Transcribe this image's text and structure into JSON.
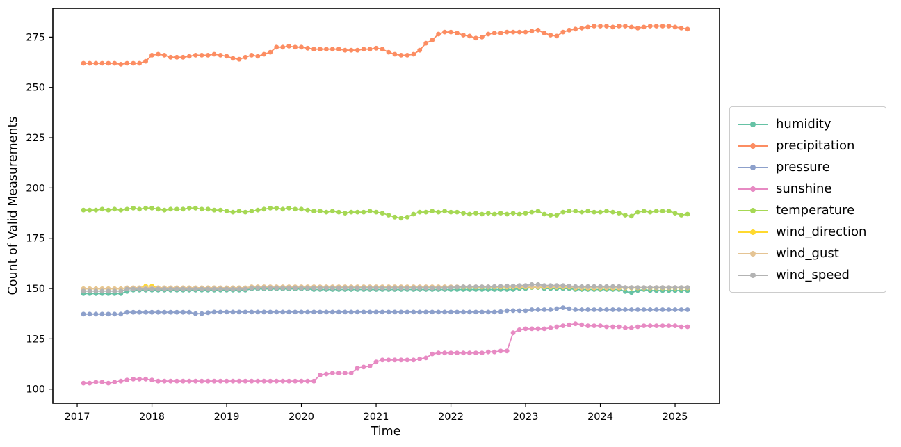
{
  "chart_data": {
    "type": "line",
    "title": "",
    "xlabel": "Time",
    "ylabel": "Count of Valid Measurements",
    "x_ticks": [
      2017,
      2018,
      2019,
      2020,
      2021,
      2022,
      2023,
      2024,
      2025
    ],
    "y_ticks": [
      100,
      125,
      150,
      175,
      200,
      225,
      250,
      275
    ],
    "xlim": [
      2016.674,
      2025.595
    ],
    "ylim": [
      93.0,
      289.3
    ],
    "grid": false,
    "legend_position": "center-right-outside",
    "marker": "circle",
    "x_frequency": "monthly",
    "x_start": {
      "year": 2017,
      "month": 2
    },
    "series": [
      {
        "name": "humidity",
        "color": "#66c2a5",
        "values": [
          147.5,
          147.5,
          147.5,
          147.5,
          147.5,
          147.5,
          147.5,
          148.5,
          149.2,
          149.2,
          149.2,
          149.2,
          149.2,
          149.2,
          149.2,
          149.2,
          149.2,
          149.2,
          149.2,
          149.2,
          149.2,
          149.2,
          149.2,
          149.2,
          149.2,
          149.2,
          149.2,
          149.8,
          149.8,
          149.8,
          149.8,
          149.8,
          149.8,
          149.8,
          149.8,
          149.8,
          149.8,
          149.5,
          149.5,
          149.5,
          149.5,
          149.5,
          149.5,
          149.5,
          149.5,
          149.5,
          149.5,
          149.5,
          149.5,
          149.5,
          149.5,
          149.5,
          149.5,
          149.5,
          149.5,
          149.5,
          149.5,
          149.5,
          149.5,
          149.5,
          149.5,
          149.5,
          149.5,
          149.5,
          149.5,
          149.5,
          149.5,
          149.5,
          149.5,
          149.5,
          150,
          150,
          150.5,
          150.5,
          150,
          150,
          150,
          150,
          150,
          149.5,
          149.5,
          149.5,
          149.5,
          149.5,
          149.5,
          149.5,
          149.5,
          148.5,
          148,
          149,
          149.5,
          149,
          149,
          149,
          149,
          149,
          149,
          149
        ]
      },
      {
        "name": "precipitation",
        "color": "#fc8d62",
        "values": [
          262,
          262,
          262,
          262,
          262,
          262,
          261.5,
          262,
          262,
          262,
          263,
          266,
          266.5,
          266,
          265,
          265,
          265,
          265.5,
          266,
          266,
          266,
          266.5,
          266,
          265.5,
          264.5,
          264,
          265,
          266,
          265.5,
          266.5,
          267.5,
          270,
          270,
          270.5,
          270,
          270,
          269.5,
          269,
          269,
          269,
          269,
          269,
          268.5,
          268.5,
          268.5,
          269,
          269,
          269.5,
          269,
          267.5,
          266.5,
          266,
          266,
          266.5,
          268.5,
          272,
          273.5,
          276.5,
          277.5,
          277.5,
          277,
          276,
          275.5,
          274.5,
          275,
          276.5,
          277,
          277,
          277.5,
          277.5,
          277.5,
          277.5,
          278,
          278.5,
          277,
          276,
          275.5,
          277.5,
          278.5,
          279,
          279.5,
          280,
          280.5,
          280.5,
          280.5,
          280,
          280.5,
          280.5,
          280,
          279.5,
          280,
          280.5,
          280.5,
          280.5,
          280.5,
          280,
          279.5,
          279
        ]
      },
      {
        "name": "pressure",
        "color": "#8da0cb",
        "values": [
          137.3,
          137.3,
          137.3,
          137.3,
          137.3,
          137.3,
          137.3,
          138.2,
          138.2,
          138.2,
          138.2,
          138.2,
          138.2,
          138.2,
          138.2,
          138.2,
          138.2,
          138.2,
          137.5,
          137.5,
          138,
          138.3,
          138.3,
          138.3,
          138.3,
          138.3,
          138.3,
          138.3,
          138.3,
          138.3,
          138.3,
          138.3,
          138.3,
          138.3,
          138.3,
          138.3,
          138.3,
          138.3,
          138.3,
          138.3,
          138.3,
          138.3,
          138.3,
          138.3,
          138.3,
          138.3,
          138.3,
          138.3,
          138.3,
          138.3,
          138.3,
          138.3,
          138.3,
          138.3,
          138.3,
          138.3,
          138.3,
          138.3,
          138.3,
          138.3,
          138.3,
          138.3,
          138.3,
          138.3,
          138.3,
          138.3,
          138.3,
          138.5,
          139,
          139,
          139,
          139,
          139.5,
          139.5,
          139.5,
          139.5,
          140,
          140.5,
          140,
          139.5,
          139.5,
          139.5,
          139.5,
          139.5,
          139.5,
          139.5,
          139.5,
          139.5,
          139.5,
          139.5,
          139.5,
          139.5,
          139.5,
          139.5,
          139.5,
          139.5,
          139.5,
          139.5
        ]
      },
      {
        "name": "sunshine",
        "color": "#e78ac3",
        "values": [
          103,
          103,
          103.5,
          103.5,
          103,
          103.5,
          104,
          104.5,
          105,
          105,
          105,
          104.5,
          104,
          104,
          104,
          104,
          104,
          104,
          104,
          104,
          104,
          104,
          104,
          104,
          104,
          104,
          104,
          104,
          104,
          104,
          104,
          104,
          104,
          104,
          104,
          104,
          104,
          104,
          107,
          107.5,
          108,
          108,
          108,
          108,
          110.5,
          111,
          111.5,
          113.5,
          114.5,
          114.5,
          114.5,
          114.5,
          114.5,
          114.5,
          115,
          115.5,
          117.5,
          118,
          118,
          118,
          118,
          118,
          118,
          118,
          118,
          118.5,
          118.5,
          119,
          119,
          128,
          129.5,
          130,
          130,
          130,
          130,
          130.5,
          131,
          131.5,
          132,
          132.5,
          132,
          131.5,
          131.5,
          131.5,
          131,
          131,
          131,
          130.5,
          130.5,
          131,
          131.5,
          131.5,
          131.5,
          131.5,
          131.5,
          131.5,
          131,
          131
        ]
      },
      {
        "name": "temperature",
        "color": "#a6d854",
        "values": [
          189,
          189,
          189,
          189.5,
          189,
          189.5,
          189,
          189.5,
          190,
          189.5,
          190,
          190,
          189.5,
          189,
          189.5,
          189.5,
          189.5,
          190,
          190,
          189.5,
          189.5,
          189,
          189,
          188.5,
          188,
          188.5,
          188,
          188.5,
          189,
          189.5,
          190,
          190,
          189.5,
          190,
          189.5,
          189.5,
          189,
          188.5,
          188.5,
          188,
          188.5,
          188,
          187.5,
          188,
          188,
          188,
          188.5,
          188,
          187.5,
          186.5,
          185.5,
          185,
          185.5,
          187,
          188,
          188,
          188.5,
          188,
          188.5,
          188,
          188,
          187.5,
          187,
          187.5,
          187,
          187.5,
          187,
          187.5,
          187,
          187.5,
          187,
          187.5,
          188,
          188.5,
          187,
          186.5,
          186.5,
          188,
          188.5,
          188.5,
          188,
          188.5,
          188,
          188,
          188.5,
          188,
          187.5,
          186.5,
          186,
          188,
          188.5,
          188,
          188.5,
          188.5,
          188.5,
          187.5,
          186.5,
          187
        ]
      },
      {
        "name": "wind_direction",
        "color": "#ffd92f",
        "values": [
          149.9,
          149.9,
          149.9,
          149.9,
          149.9,
          149.9,
          149.9,
          150.3,
          150.3,
          150.3,
          151.2,
          151.2,
          150.3,
          150.3,
          150.3,
          150.3,
          150.3,
          150.3,
          150.3,
          150.3,
          150.3,
          150.3,
          150.3,
          150.3,
          150.3,
          150.3,
          150.3,
          150.7,
          150.7,
          150.7,
          150.7,
          150.7,
          150.7,
          150.7,
          150.7,
          150.7,
          150.7,
          150.7,
          150.7,
          150.7,
          150.7,
          150.7,
          150.7,
          150.7,
          150.7,
          150.7,
          150.7,
          150.7,
          150.7,
          150.7,
          150.7,
          150.7,
          150.7,
          150.7,
          150.7,
          150.7,
          150.7,
          150.7,
          150.7,
          150.7,
          150.7,
          150.7,
          150.7,
          150.7,
          150.7,
          150.7,
          150.7,
          150.7,
          150.7,
          150.7,
          150.7,
          150.7,
          150.7,
          150.7,
          150.7,
          150.7,
          150.7,
          150.7,
          150.7,
          150.3,
          150.3,
          150.3,
          150.3,
          150.3,
          150.3,
          150.3,
          150.3,
          150.3,
          150.3,
          150.3,
          150.3,
          150.3,
          150.3,
          150.3,
          150.3,
          150.3,
          150.3,
          150.3
        ]
      },
      {
        "name": "wind_gust",
        "color": "#e5c494",
        "values": [
          149.9,
          149.9,
          149.9,
          149.9,
          149.9,
          149.9,
          149.9,
          150.4,
          150.4,
          150.4,
          150.4,
          150.4,
          150.4,
          150.4,
          150.4,
          150.4,
          150.4,
          150.4,
          150.4,
          150.4,
          150.4,
          150.4,
          150.4,
          150.4,
          150.4,
          150.4,
          150.4,
          150.9,
          150.9,
          150.9,
          150.9,
          150.9,
          150.9,
          150.9,
          150.9,
          150.9,
          150.9,
          150.9,
          150.9,
          150.9,
          150.9,
          150.9,
          150.9,
          150.9,
          150.9,
          150.9,
          150.9,
          150.9,
          150.9,
          150.9,
          150.9,
          150.9,
          150.9,
          150.9,
          150.9,
          150.9,
          150.9,
          150.9,
          150.9,
          150.9,
          150.9,
          150.9,
          150.9,
          150.9,
          150.9,
          150.9,
          150.9,
          150.9,
          150.9,
          150.9,
          150.9,
          150.9,
          150.9,
          150.9,
          150.9,
          150.9,
          150.9,
          150.9,
          150.9,
          150.5,
          150.5,
          150.5,
          150.5,
          150.5,
          150.5,
          150.5,
          150.5,
          150.5,
          150.5,
          150.5,
          150.5,
          150.5,
          150.5,
          150.5,
          150.5,
          150.5,
          150.5,
          150.5
        ]
      },
      {
        "name": "wind_speed",
        "color": "#b3b3b3",
        "values": [
          148.7,
          148.7,
          148.7,
          148.7,
          148.7,
          148.7,
          148.7,
          149.7,
          149.7,
          149.7,
          149.7,
          149.7,
          149.7,
          149.7,
          149.7,
          149.7,
          149.7,
          149.7,
          149.7,
          149.7,
          149.7,
          149.7,
          149.7,
          149.7,
          149.7,
          149.7,
          149.7,
          150.3,
          150.3,
          150.3,
          150.3,
          150.3,
          150.3,
          150.3,
          150.3,
          150.3,
          150.3,
          150.3,
          150.3,
          150.3,
          150.3,
          150.3,
          150.3,
          150.3,
          150.3,
          150.3,
          150.3,
          150.3,
          150.3,
          150.3,
          150.3,
          150.3,
          150.3,
          150.3,
          150.3,
          150.3,
          150.3,
          150.3,
          150.3,
          150.5,
          150.7,
          150.9,
          150.9,
          150.9,
          150.9,
          150.9,
          151,
          151.1,
          151.3,
          151.3,
          151.5,
          151.5,
          152,
          152,
          151.5,
          151.5,
          151.5,
          151.5,
          151.3,
          151,
          151,
          151,
          151,
          151,
          151,
          151,
          151,
          150.5,
          150.5,
          150.5,
          150.5,
          150.5,
          150.5,
          150.5,
          150.5,
          150.5,
          150.5,
          150.5
        ]
      }
    ]
  }
}
